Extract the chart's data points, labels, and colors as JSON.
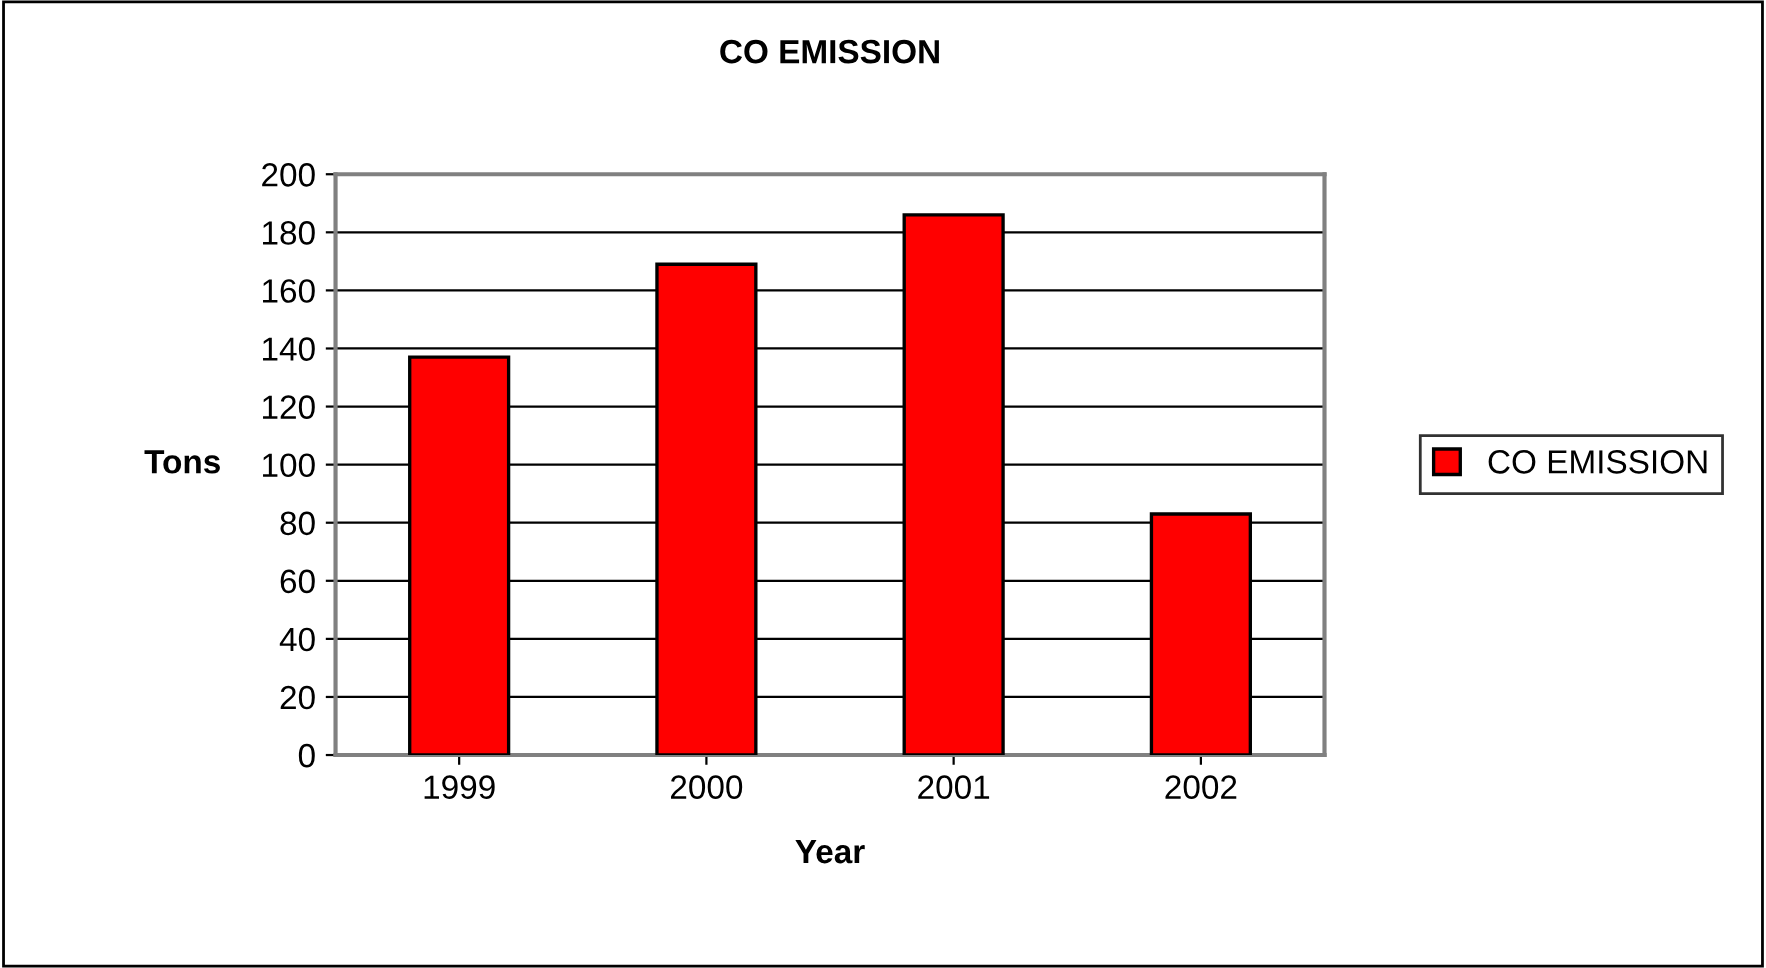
{
  "chart_data": {
    "type": "bar",
    "title": "CO EMISSION",
    "xlabel": "Year",
    "ylabel": "Tons",
    "categories": [
      "1999",
      "2000",
      "2001",
      "2002"
    ],
    "series": [
      {
        "name": "CO EMISSION",
        "color": "#ff0000",
        "values": [
          137,
          169,
          186,
          83
        ]
      }
    ],
    "ylim": [
      0,
      200
    ],
    "yticks": [
      0,
      20,
      40,
      60,
      80,
      100,
      120,
      140,
      160,
      180,
      200
    ],
    "grid": "y",
    "legend": "right"
  }
}
